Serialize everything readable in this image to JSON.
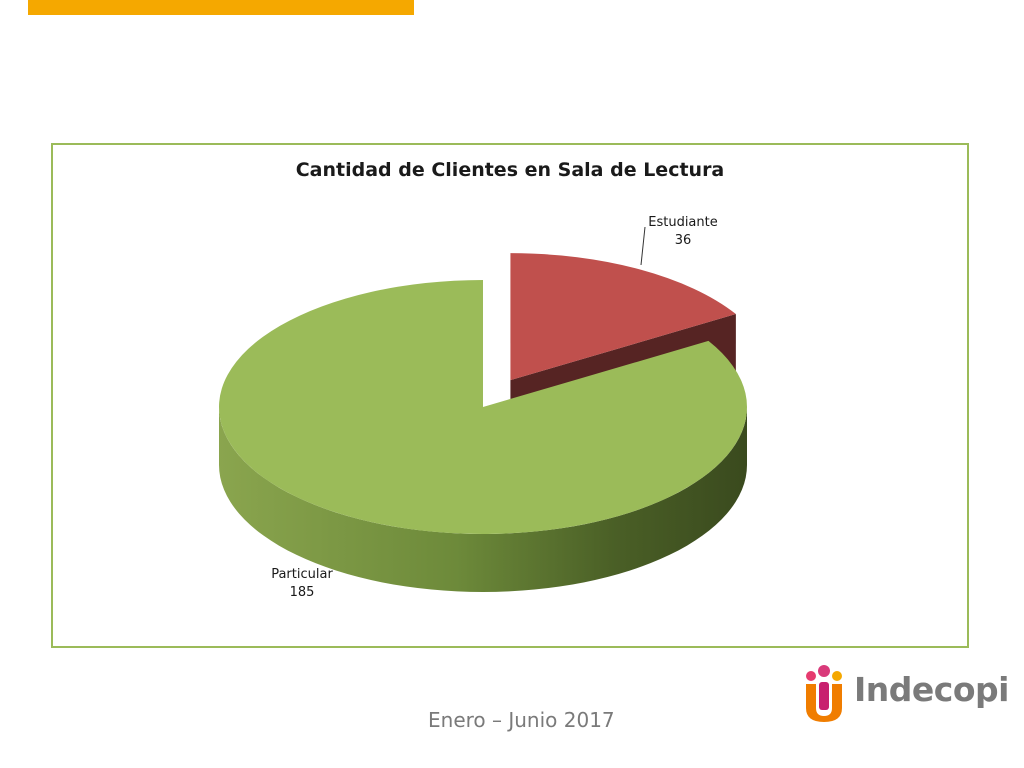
{
  "chart_data": {
    "type": "pie",
    "style": "3d-exploded",
    "title": "Cantidad de Clientes en Sala de Lectura",
    "slices": [
      {
        "label": "Particular",
        "value": 185,
        "color": "#9BBB59"
      },
      {
        "label": "Estudiante",
        "value": 36,
        "color": "#C0504D"
      }
    ],
    "frame_color": "#9BBB59"
  },
  "footer": {
    "period": "Enero – Junio 2017"
  },
  "logo": {
    "text": "Indecopi",
    "icon": "indecopi-people-icon"
  },
  "colors": {
    "accent_bar": "#F5A800",
    "text_gray": "#7a7a7a"
  }
}
